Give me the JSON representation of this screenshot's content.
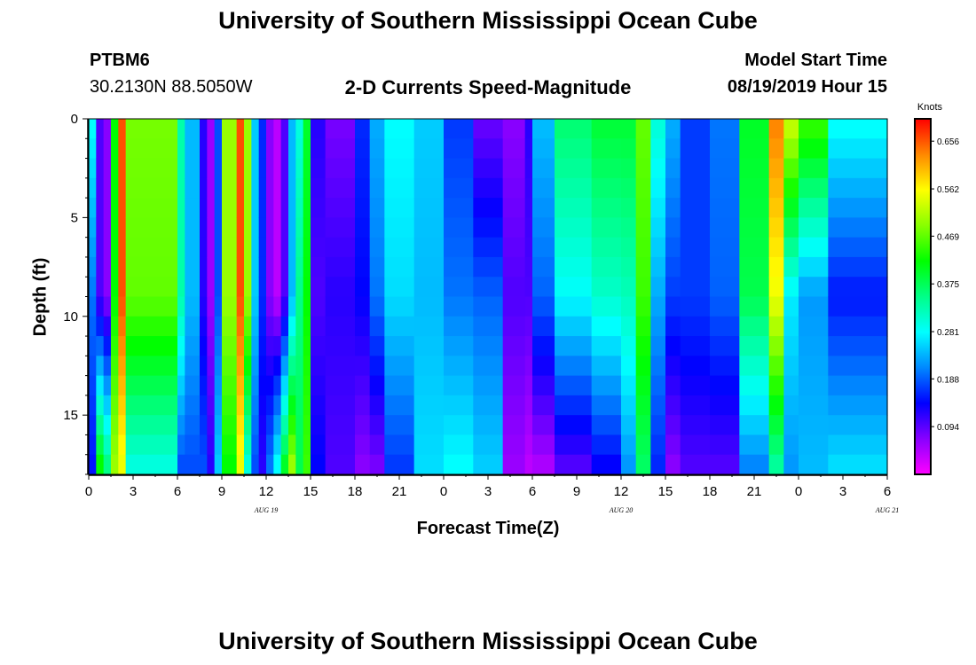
{
  "page": {
    "title": "University of Southern Mississippi Ocean Cube",
    "footer_title": "University of Southern Mississippi Ocean Cube"
  },
  "header": {
    "station_id": "PTBM6",
    "station_coords": "30.2130N 88.5050W",
    "chart_title": "2-D Currents Speed-Magnitude",
    "model_label": "Model Start Time",
    "model_start": "08/19/2019 Hour 15"
  },
  "chart_data": {
    "type": "heatmap",
    "title": "2-D Currents Speed-Magnitude",
    "xlabel": "Forecast Time(Z)",
    "ylabel": "Depth (ft)",
    "x_tick_labels": [
      "0",
      "3",
      "6",
      "9",
      "12",
      "15",
      "18",
      "21",
      "0",
      "3",
      "6",
      "9",
      "12",
      "15",
      "18",
      "21",
      "0",
      "3",
      "6"
    ],
    "date_labels": [
      "AUG 19",
      "AUG 20",
      "AUG 21"
    ],
    "y_tick_labels": [
      "0",
      "5",
      "10",
      "15"
    ],
    "ylim": [
      0,
      18
    ],
    "y_direction": "down",
    "colorbar": {
      "unit": "Knots",
      "tick_labels": [
        "0.656",
        "0.562",
        "0.469",
        "0.375",
        "0.281",
        "0.188",
        "0.094"
      ],
      "min": 0.0,
      "max": 0.7,
      "colors": [
        "#ff00ff",
        "#8800ff",
        "#0000ff",
        "#0088ff",
        "#00ffff",
        "#00ff88",
        "#00ff00",
        "#88ff00",
        "#ffff00",
        "#ff8800",
        "#ff0000"
      ]
    },
    "columns": [
      {
        "hours": "0-0.5",
        "profile": "0.28 0.20 0.15"
      },
      {
        "hours": "0.5-1",
        "profile": "0.10 0.10 0.42"
      },
      {
        "hours": "1-1.5",
        "profile": "0.07 0.07 0.35"
      },
      {
        "hours": "1.5-2",
        "profile": "0.42 0.42 0.50"
      },
      {
        "hours": "2-2.5",
        "profile": "0.66 0.66 0.55"
      },
      {
        "hours": "2.5-6",
        "profile": "0.48 0.47 0.30"
      },
      {
        "hours": "6-6.5",
        "profile": "0.33 0.33 0.18"
      },
      {
        "hours": "6.5-7.5",
        "profile": "0.24 0.24 0.18"
      },
      {
        "hours": "7.5-8",
        "profile": "0.12 0.12 0.18"
      },
      {
        "hours": "8-8.5",
        "profile": "0.06 0.06 0.12"
      },
      {
        "hours": "8.5-9",
        "profile": "0.18 0.18 0.25"
      },
      {
        "hours": "9-10",
        "profile": "0.50 0.50 0.42"
      },
      {
        "hours": "10-10.5",
        "profile": "0.66 0.66 0.55"
      },
      {
        "hours": "10.5-11",
        "profile": "0.50 0.50 0.30"
      },
      {
        "hours": "11-11.5",
        "profile": "0.25 0.25 0.18"
      },
      {
        "hours": "11.5-12",
        "profile": "0.16 0.16 0.12"
      },
      {
        "hours": "12-12.5",
        "profile": "0.07 0.07 0.20"
      },
      {
        "hours": "12.5-13",
        "profile": "0.04 0.04 0.28"
      },
      {
        "hours": "13-13.5",
        "profile": "0.10 0.10 0.40"
      },
      {
        "hours": "13.5-14",
        "profile": "0.24 0.24 0.50"
      },
      {
        "hours": "14-14.5",
        "profile": "0.30 0.35 0.38"
      },
      {
        "hours": "14.5-15",
        "profile": "0.40 0.42 0.45"
      },
      {
        "hours": "15-16",
        "profile": "0.12 0.10 0.14"
      },
      {
        "hours": "16-18",
        "profile": "0.08 0.12 0.10"
      },
      {
        "hours": "18-19",
        "profile": "0.16 0.14 0.07"
      },
      {
        "hours": "19-20",
        "profile": "0.23 0.20 0.08"
      },
      {
        "hours": "20-22",
        "profile": "0.28 0.26 0.17"
      },
      {
        "hours": "22-24",
        "profile": "0.25 0.24 0.26"
      },
      {
        "hours": "24-26",
        "profile": "0.17 0.20 0.28"
      },
      {
        "hours": "26-28",
        "profile": "0.09 0.19 0.25"
      },
      {
        "hours": "28-29.5",
        "profile": "0.07 0.10 0.06"
      },
      {
        "hours": "29.5-30",
        "profile": "0.12 0.10 0.04"
      },
      {
        "hours": "30-31.5",
        "profile": "0.24 0.19 0.05"
      },
      {
        "hours": "31.5-34",
        "profile": "0.36 0.28 0.10"
      },
      {
        "hours": "34-36",
        "profile": "0.39 0.31 0.14"
      },
      {
        "hours": "36-37",
        "profile": "0.39 0.32 0.22"
      },
      {
        "hours": "37-38",
        "profile": "0.47 0.45 0.37"
      },
      {
        "hours": "38-39",
        "profile": "0.30 0.23 0.16"
      },
      {
        "hours": "39-40",
        "profile": "0.23 0.17 0.07"
      },
      {
        "hours": "40-42",
        "profile": "0.17 0.17 0.10"
      },
      {
        "hours": "42-44",
        "profile": "0.20 0.19 0.10"
      },
      {
        "hours": "44-46",
        "profile": "0.40 0.38 0.21"
      },
      {
        "hours": "46-47",
        "profile": "0.63 0.55 0.34"
      },
      {
        "hours": "47-48",
        "profile": "0.52 0.27 0.22"
      },
      {
        "hours": "48-50",
        "profile": "0.44 0.22 0.24"
      },
      {
        "hours": "50-54",
        "profile": "0.28 0.15 0.26"
      }
    ]
  }
}
